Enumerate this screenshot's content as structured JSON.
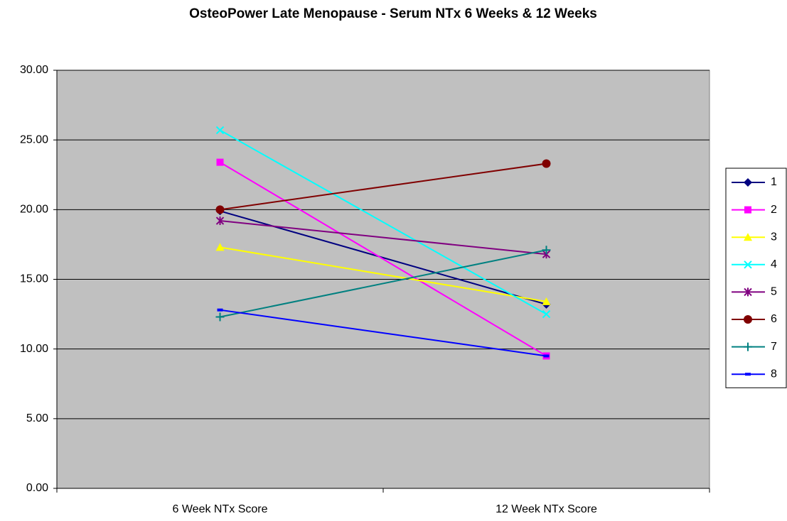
{
  "chart_data": {
    "type": "line",
    "title": "OsteoPower Late Menopause - Serum NTx 6 Weeks & 12 Weeks",
    "categories": [
      "6 Week NTx Score",
      "12 Week NTx Score"
    ],
    "series": [
      {
        "name": "1",
        "color": "#000080",
        "marker": "diamond",
        "values": [
          19.9,
          13.2
        ]
      },
      {
        "name": "2",
        "color": "#ff00ff",
        "marker": "square",
        "values": [
          23.4,
          9.5
        ]
      },
      {
        "name": "3",
        "color": "#ffff00",
        "marker": "triangle",
        "values": [
          17.3,
          13.4
        ]
      },
      {
        "name": "4",
        "color": "#00ffff",
        "marker": "x",
        "values": [
          25.7,
          12.5
        ]
      },
      {
        "name": "5",
        "color": "#800080",
        "marker": "star",
        "values": [
          19.2,
          16.8
        ]
      },
      {
        "name": "6",
        "color": "#800000",
        "marker": "circle",
        "values": [
          20.0,
          23.3
        ]
      },
      {
        "name": "7",
        "color": "#008080",
        "marker": "plus",
        "values": [
          12.3,
          17.1
        ]
      },
      {
        "name": "8",
        "color": "#0000ff",
        "marker": "dash",
        "values": [
          12.8,
          9.5
        ]
      }
    ],
    "ylim": [
      0,
      30
    ],
    "yticks": [
      {
        "value": 0,
        "label": "0.00"
      },
      {
        "value": 5,
        "label": "5.00"
      },
      {
        "value": 10,
        "label": "10.00"
      },
      {
        "value": 15,
        "label": "15.00"
      },
      {
        "value": 20,
        "label": "20.00"
      },
      {
        "value": 25,
        "label": "25.00"
      },
      {
        "value": 30,
        "label": "30.00"
      }
    ],
    "grid": true,
    "legend": "right",
    "plot_background": "#c0c0c0"
  }
}
